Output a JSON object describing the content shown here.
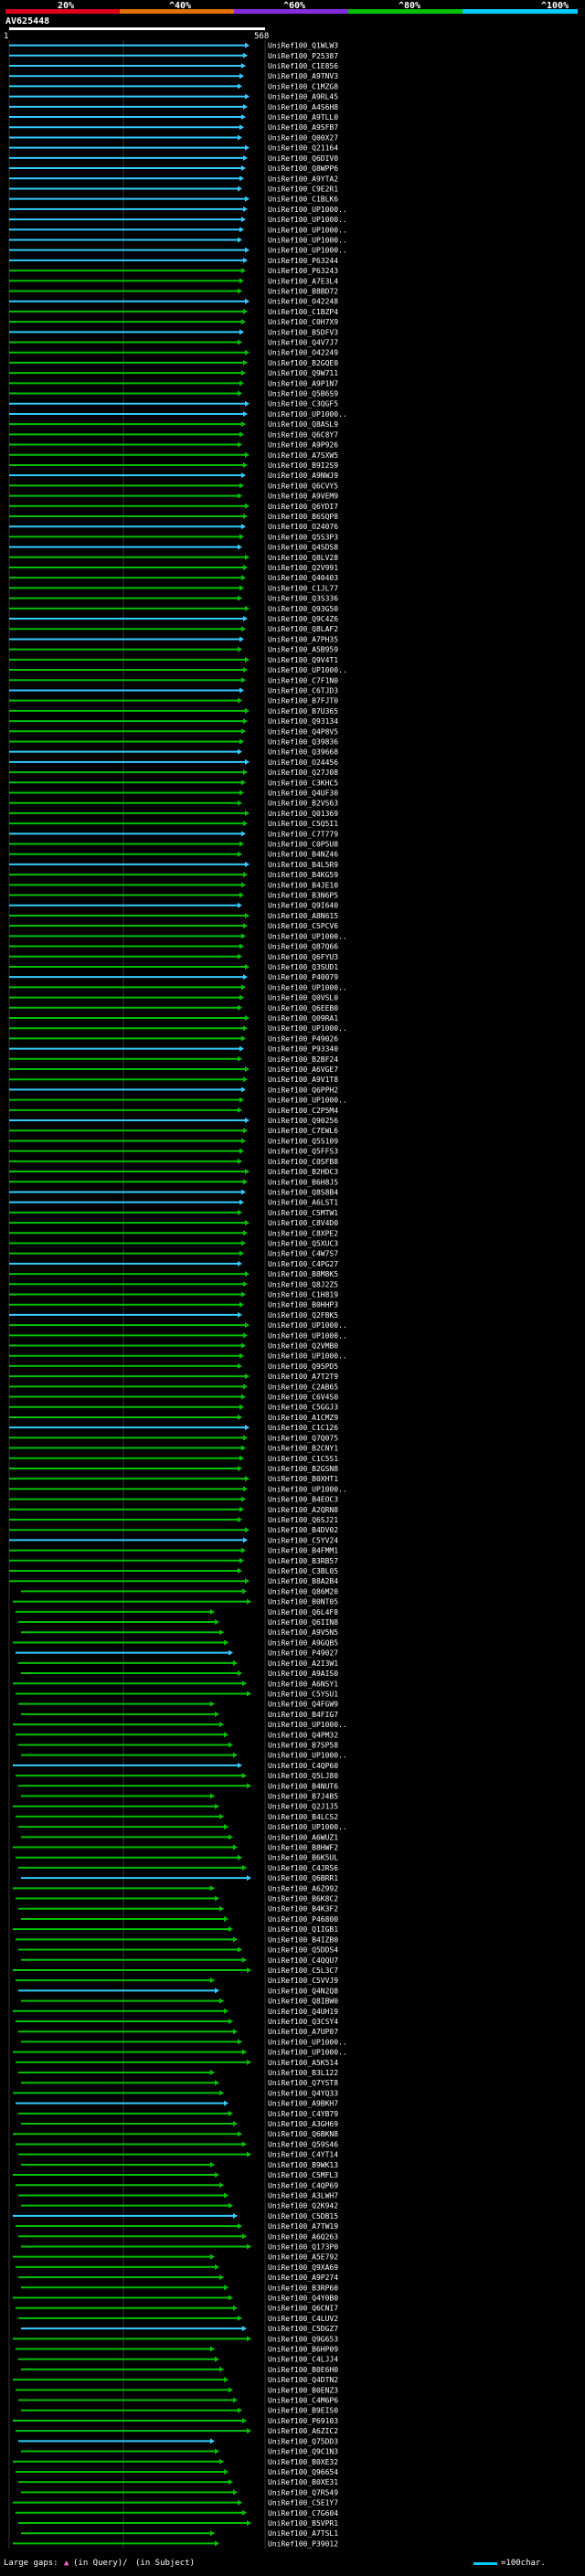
{
  "header": {
    "percent_labels": [
      "20%",
      "^40%",
      "^60%",
      "^80%",
      "^100%"
    ],
    "colors": [
      "#e0001b",
      "#e07000",
      "#8a2be2",
      "#00c000",
      "#00ccff"
    ],
    "query_id": "AV625448",
    "query_start": "1",
    "query_end": "568"
  },
  "footer": {
    "gaps_label": "Large gaps:",
    "in_query": "(in Query)/",
    "in_subject": "(in Subject)",
    "scale_label": "=100char."
  },
  "hits": [
    "UniRef100_Q1WLW3",
    "UniRef100_P25387",
    "UniRef100_C1E856",
    "UniRef100_A9TNV3",
    "UniRef100_C1MZG8",
    "UniRef100_A9RL45",
    "UniRef100_A4S6H8",
    "UniRef100_A9TLL0",
    "UniRef100_A9SFB7",
    "UniRef100_Q00X27",
    "UniRef100_Q21164",
    "UniRef100_Q6DIV0",
    "UniRef100_Q8WPP6",
    "UniRef100_A9YTA2",
    "UniRef100_C9E2R1",
    "UniRef100_C1BLK6",
    "UniRef100_UP1000..",
    "UniRef100_UP1000..",
    "UniRef100_UP1000..",
    "UniRef100_UP1000..",
    "UniRef100_UP1000..",
    "UniRef100_P63244",
    "UniRef100_P63243",
    "UniRef100_A7E3L4",
    "UniRef100_B8BD72",
    "UniRef100_O42248",
    "UniRef100_C1BZP4",
    "UniRef100_C0H7X9",
    "UniRef100_B5DFV3",
    "UniRef100_Q4V7J7",
    "UniRef100_O42249",
    "UniRef100_B2GQE0",
    "UniRef100_Q9W711",
    "UniRef100_A9P1N7",
    "UniRef100_Q5B6S9",
    "UniRef100_C3QGF5",
    "UniRef100_UP1000..",
    "UniRef100_Q8ASL9",
    "UniRef100_Q6C8Y7",
    "UniRef100_A9P926",
    "UniRef100_A7SXW5",
    "UniRef100_B9I2S9",
    "UniRef100_A9NWJ9",
    "UniRef100_Q6CVY5",
    "UniRef100_A9VEM9",
    "UniRef100_Q6YDI7",
    "UniRef100_B6SQP8",
    "UniRef100_O24076",
    "UniRef100_Q5S3P3",
    "UniRef100_Q4SDS8",
    "UniRef100_Q8LV28",
    "UniRef100_Q2V991",
    "UniRef100_Q40403",
    "UniRef100_C1JL77",
    "UniRef100_Q3S336",
    "UniRef100_Q93G50",
    "UniRef100_Q9C4Z6",
    "UniRef100_Q8LAF2",
    "UniRef100_A7PH35",
    "UniRef100_A5B959",
    "UniRef100_Q9V4T1",
    "UniRef100_UP1000..",
    "UniRef100_C7F1N0",
    "UniRef100_C6TJD3",
    "UniRef100_B7FJT0",
    "UniRef100_B7U365",
    "UniRef100_Q93134",
    "UniRef100_Q4P8V5",
    "UniRef100_Q39836",
    "UniRef100_Q39668",
    "UniRef100_O24456",
    "UniRef100_Q27J08",
    "UniRef100_C3KHC5",
    "UniRef100_Q4UF30",
    "UniRef100_B2VS63",
    "UniRef100_Q01369",
    "UniRef100_C5Q5I1",
    "UniRef100_C7T779",
    "UniRef100_C0P5U8",
    "UniRef100_B4NZ46",
    "UniRef100_B4L5R9",
    "UniRef100_B4KG59",
    "UniRef100_B4JE10",
    "UniRef100_B3N6P5",
    "UniRef100_Q9I640",
    "UniRef100_A8N615",
    "UniRef100_C5PCV6",
    "UniRef100_UP1000..",
    "UniRef100_Q87Q66",
    "UniRef100_Q6FYU3",
    "UniRef100_Q3SUD1",
    "UniRef100_P40079",
    "UniRef100_UP1000..",
    "UniRef100_Q0VSL0",
    "UniRef100_Q6EEB0",
    "UniRef100_Q09RA1",
    "UniRef100_UP1000..",
    "UniRef100_P49026",
    "UniRef100_P93340",
    "UniRef100_B2BF24",
    "UniRef100_A6VGE7",
    "UniRef100_A9V1T8",
    "UniRef100_Q6PPH2",
    "UniRef100_UP1000..",
    "UniRef100_C2P5M4",
    "UniRef100_Q90256",
    "UniRef100_C7EWL6",
    "UniRef100_Q5S109",
    "UniRef100_Q5FFS3",
    "UniRef100_C0SFB8",
    "UniRef100_B2HDC3",
    "UniRef100_B6H8J5",
    "UniRef100_Q8S8B4",
    "UniRef100_A6LST1",
    "UniRef100_C5MTW1",
    "UniRef100_C8V4D0",
    "UniRef100_C8XPE2",
    "UniRef100_Q5XUC3",
    "UniRef100_C4W7S7",
    "UniRef100_C4PG27",
    "UniRef100_B8M8K5",
    "UniRef100_Q8J2Z5",
    "UniRef100_C1H819",
    "UniRef100_B0HHP3",
    "UniRef100_Q2FBK5",
    "UniRef100_UP1000..",
    "UniRef100_UP1000..",
    "UniRef100_Q2VMB0",
    "UniRef100_UP1000..",
    "UniRef100_Q95PD5",
    "UniRef100_A7T2T9",
    "UniRef100_C2AB65",
    "UniRef100_C6V4S0",
    "UniRef100_C5GGJ3",
    "UniRef100_A1CMZ9",
    "UniRef100_C1C126",
    "UniRef100_Q7Q075",
    "UniRef100_B2CNY1",
    "UniRef100_C1C5S1",
    "UniRef100_B2GSN8",
    "UniRef100_B0XHT1",
    "UniRef100_UP1000..",
    "UniRef100_B4EOC3",
    "UniRef100_A2QRN8",
    "UniRef100_Q6SJ21",
    "UniRef100_B4DV02",
    "UniRef100_C5YV24",
    "UniRef100_B4FMM1",
    "UniRef100_B3RB57",
    "UniRef100_C3BL05",
    "UniRef100_B8A2B4",
    "UniRef100_Q86M20",
    "UniRef100_B0NT05",
    "UniRef100_Q6L4F8",
    "UniRef100_Q6IIN8",
    "UniRef100_A9V5N5",
    "UniRef100_A9GQB5",
    "UniRef100_P49027",
    "UniRef100_A2I3W1",
    "UniRef100_A9AIS0",
    "UniRef100_A6NSY1",
    "UniRef100_C5YSU1",
    "UniRef100_Q4FGW9",
    "UniRef100_B4FIG7",
    "UniRef100_UP1000..",
    "UniRef100_Q4PM32",
    "UniRef100_B7SP58",
    "UniRef100_UP1000..",
    "UniRef100_C4QP60",
    "UniRef100_Q5LJ80",
    "UniRef100_B4NUT6",
    "UniRef100_B7J4B5",
    "UniRef100_Q2J1J5",
    "UniRef100_B4LCS2",
    "UniRef100_UP1000..",
    "UniRef100_A6WUZ1",
    "UniRef100_B8HWF2",
    "UniRef100_B6K5UL",
    "UniRef100_C4JRS6",
    "UniRef100_Q6BRR1",
    "UniRef100_A6Z992",
    "UniRef100_B6K8C2",
    "UniRef100_B4K3F2",
    "UniRef100_P46800",
    "UniRef100_Q1IGB1",
    "UniRef100_B4IZB0",
    "UniRef100_Q5DDS4",
    "UniRef100_C4QQU7",
    "UniRef100_C5L3C7",
    "UniRef100_C5VVJ9",
    "UniRef100_Q4N2Q8",
    "UniRef100_Q8IBW0",
    "UniRef100_Q4UH19",
    "UniRef100_Q3CSY4",
    "UniRef100_A7UP07",
    "UniRef100_UP1000..",
    "UniRef100_UP1000..",
    "UniRef100_A5K514",
    "UniRef100_B3L122",
    "UniRef100_Q7YST8",
    "UniRef100_Q4YQ33",
    "UniRef100_A9BKH7",
    "UniRef100_C4YB79",
    "UniRef100_A3GH69",
    "UniRef100_Q6BKN8",
    "UniRef100_Q59S46",
    "UniRef100_C4YT14",
    "UniRef100_B9WK13",
    "UniRef100_C5MFL3",
    "UniRef100_C4QP69",
    "UniRef100_A3LWH7",
    "UniRef100_Q2K942",
    "UniRef100_C5DB15",
    "UniRef100_A7TW19",
    "UniRef100_A6Q263",
    "UniRef100_Q173P0",
    "UniRef100_A5E792",
    "UniRef100_Q9XA69",
    "UniRef100_A9P274",
    "UniRef100_B3RP60",
    "UniRef100_Q4Y0B0",
    "UniRef100_Q6CNI7",
    "UniRef100_C4LUV2",
    "UniRef100_C5DGZ7",
    "UniRef100_Q9G653",
    "UniRef100_B6HP09",
    "UniRef100_C4LJJ4",
    "UniRef100_B0E6H0",
    "UniRef100_Q4DTN2",
    "UniRef100_B0ENZ3",
    "UniRef100_C4M6P6",
    "UniRef100_B9EIS0",
    "UniRef100_P69103",
    "UniRef100_A6ZIC2",
    "UniRef100_Q75DD3",
    "UniRef100_Q9C1N3",
    "UniRef100_B0XE32",
    "UniRef100_Q96654",
    "UniRef100_B0XE31",
    "UniRef100_Q7R549",
    "UniRef100_C5E1Y7",
    "UniRef100_C7G604",
    "UniRef100_B5VPR1",
    "UniRef100_A7TSL1",
    "UniRef100_P39012"
  ]
}
